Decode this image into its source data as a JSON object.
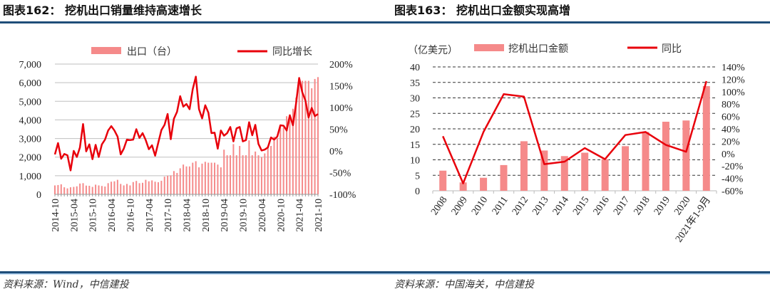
{
  "colors": {
    "bar": "#f58a8a",
    "line": "#e8000b",
    "rule": "#1f4e79",
    "grid": "#bfbfbf"
  },
  "chart_data": [
    {
      "type": "bar+line",
      "title": "图表162：  挖机出口销量维持高速增长",
      "source": "资料来源：Wind，中信建投",
      "legend": {
        "bar": "出口（台）",
        "line": "同比增长",
        "placement": "top"
      },
      "grid": "horizontal solid",
      "y_left": {
        "range": [
          0,
          7000
        ],
        "ticks": [
          "0",
          "1,000",
          "2,000",
          "3,000",
          "4,000",
          "5,000",
          "6,000",
          "7,000"
        ],
        "tick_values": [
          0,
          1000,
          2000,
          3000,
          4000,
          5000,
          6000,
          7000
        ]
      },
      "y_right": {
        "range": [
          -100,
          200
        ],
        "ticks": [
          "-100%",
          "-50%",
          "0%",
          "50%",
          "100%",
          "150%",
          "200%"
        ],
        "tick_values": [
          -100,
          -50,
          0,
          50,
          100,
          150,
          200
        ]
      },
      "x_start": "2014-10",
      "x_end": "2021-10",
      "x_tick_labels": [
        "2014-10",
        "2015-04",
        "2015-10",
        "2016-04",
        "2016-10",
        "2017-04",
        "2017-10",
        "2018-04",
        "2018-10",
        "2019-04",
        "2019-10",
        "2020-04",
        "2020-10",
        "2021-04",
        "2021-10"
      ],
      "series": [
        {
          "name": "出口（台）",
          "kind": "bar",
          "axis": "left",
          "values": [
            480,
            500,
            540,
            380,
            320,
            380,
            400,
            430,
            580,
            600,
            470,
            460,
            400,
            520,
            480,
            450,
            420,
            600,
            680,
            700,
            780,
            560,
            480,
            560,
            480,
            660,
            720,
            600,
            620,
            780,
            700,
            750,
            680,
            650,
            730,
            950,
            1000,
            1020,
            1250,
            1150,
            1400,
            1600,
            1500,
            1500,
            1700,
            1780,
            1450,
            1650,
            1750,
            1700,
            1700,
            1700,
            1600,
            1450,
            2400,
            2100,
            2100,
            2700,
            2100,
            2600,
            2100,
            2100,
            2900,
            2100,
            2300,
            2100,
            2000,
            2200,
            2600,
            2600,
            3100,
            3000,
            3600,
            3600,
            4200,
            4300,
            4600,
            5200,
            6000,
            6100,
            6100,
            6100,
            5700,
            6200,
            6300
          ]
        },
        {
          "name": "同比增长",
          "kind": "line",
          "axis": "right",
          "unit": "%",
          "values": [
            -8,
            18,
            -18,
            -7,
            -10,
            -45,
            0,
            -14,
            8,
            62,
            -1,
            15,
            -19,
            14,
            -14,
            15,
            26,
            47,
            57,
            47,
            33,
            -8,
            5,
            26,
            25,
            26,
            50,
            30,
            41,
            25,
            4,
            13,
            -11,
            19,
            48,
            60,
            85,
            27,
            74,
            90,
            126,
            102,
            108,
            96,
            142,
            171,
            96,
            75,
            105,
            88,
            41,
            42,
            5,
            47,
            35,
            41,
            55,
            22,
            52,
            55,
            22,
            25,
            66,
            36,
            60,
            16,
            1,
            3,
            8,
            31,
            26,
            33,
            59,
            58,
            47,
            82,
            59,
            110,
            168,
            135,
            116,
            77,
            99,
            80,
            85
          ]
        }
      ]
    },
    {
      "type": "bar+line",
      "title": "图表163：  挖机出口金额实现高增",
      "source": "资料来源：中国海关，中信建投",
      "unit_label": "（亿美元）",
      "legend": {
        "bar": "挖机出口金额",
        "line": "同比",
        "placement": "top"
      },
      "grid": "horizontal dashed",
      "y_left": {
        "range": [
          0,
          40
        ],
        "ticks": [
          "0",
          "5",
          "10",
          "15",
          "20",
          "25",
          "30",
          "35",
          "40"
        ],
        "tick_values": [
          0,
          5,
          10,
          15,
          20,
          25,
          30,
          35,
          40
        ]
      },
      "y_right": {
        "range": [
          -60,
          140
        ],
        "ticks": [
          "-60%",
          "-40%",
          "-20%",
          "0%",
          "20%",
          "40%",
          "60%",
          "80%",
          "100%",
          "120%",
          "140%"
        ],
        "tick_values": [
          -60,
          -40,
          -20,
          0,
          20,
          40,
          60,
          80,
          100,
          120,
          140
        ]
      },
      "categories": [
        "2008",
        "2009",
        "2010",
        "2011",
        "2012",
        "2013",
        "2014",
        "2015",
        "2016",
        "2017",
        "2018",
        "2019",
        "2020",
        "2021年1-9月"
      ],
      "series": [
        {
          "name": "挖机出口金额",
          "kind": "bar",
          "axis": "left",
          "values": [
            6.5,
            2.7,
            4.2,
            8.3,
            16.0,
            13.0,
            11.2,
            12.3,
            10.2,
            14.4,
            19.0,
            22.3,
            22.7,
            33.8
          ]
        },
        {
          "name": "同比",
          "kind": "line",
          "axis": "right",
          "unit": "%",
          "values": [
            28,
            -48,
            35,
            96,
            92,
            -17,
            -13,
            9,
            -9,
            30,
            35,
            14,
            3,
            117
          ]
        }
      ]
    }
  ]
}
